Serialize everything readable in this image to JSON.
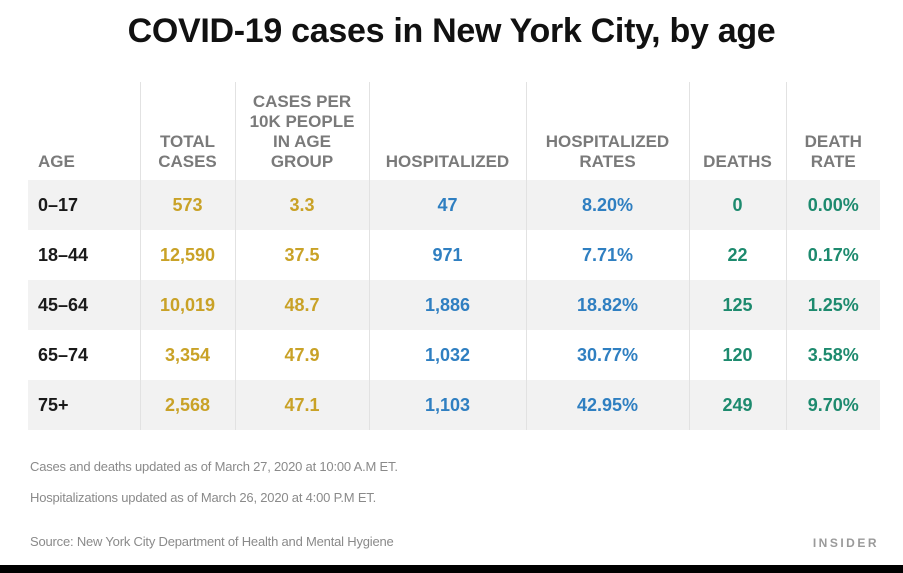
{
  "chart_data": {
    "type": "table",
    "title": "COVID-19 cases in New York City, by age",
    "columns": [
      "AGE",
      "TOTAL\nCASES",
      "CASES PER\n10K PEOPLE\nIN AGE\nGROUP",
      "HOSPITALIZED",
      "HOSPITALIZED\nRATES",
      "DEATHS",
      "DEATH\nRATE"
    ],
    "rows": [
      [
        "0–17",
        "573",
        "3.3",
        "47",
        "8.20%",
        "0",
        "0.00%"
      ],
      [
        "18–44",
        "12,590",
        "37.5",
        "971",
        "7.71%",
        "22",
        "0.17%"
      ],
      [
        "45–64",
        "10,019",
        "48.7",
        "1,886",
        "18.82%",
        "125",
        "1.25%"
      ],
      [
        "65–74",
        "3,354",
        "47.9",
        "1,032",
        "30.77%",
        "120",
        "3.58%"
      ],
      [
        "75+",
        "2,568",
        "47.1",
        "1,103",
        "42.95%",
        "249",
        "9.70%"
      ]
    ],
    "notes": [
      "Cases and deaths updated as of March 27, 2020 at 10:00 A.M ET.",
      "Hospitalizations updated as of March 26, 2020 at 4:00 P.M ET.",
      "Source: New York City Department of Health and Mental Hygiene"
    ],
    "brand": "INSIDER",
    "colors": {
      "cases": "#c9a227",
      "hospital": "#2f7fc1",
      "deaths": "#1d8a6e",
      "header": "#7a7a7a",
      "stripe": "#f2f2f2"
    }
  }
}
